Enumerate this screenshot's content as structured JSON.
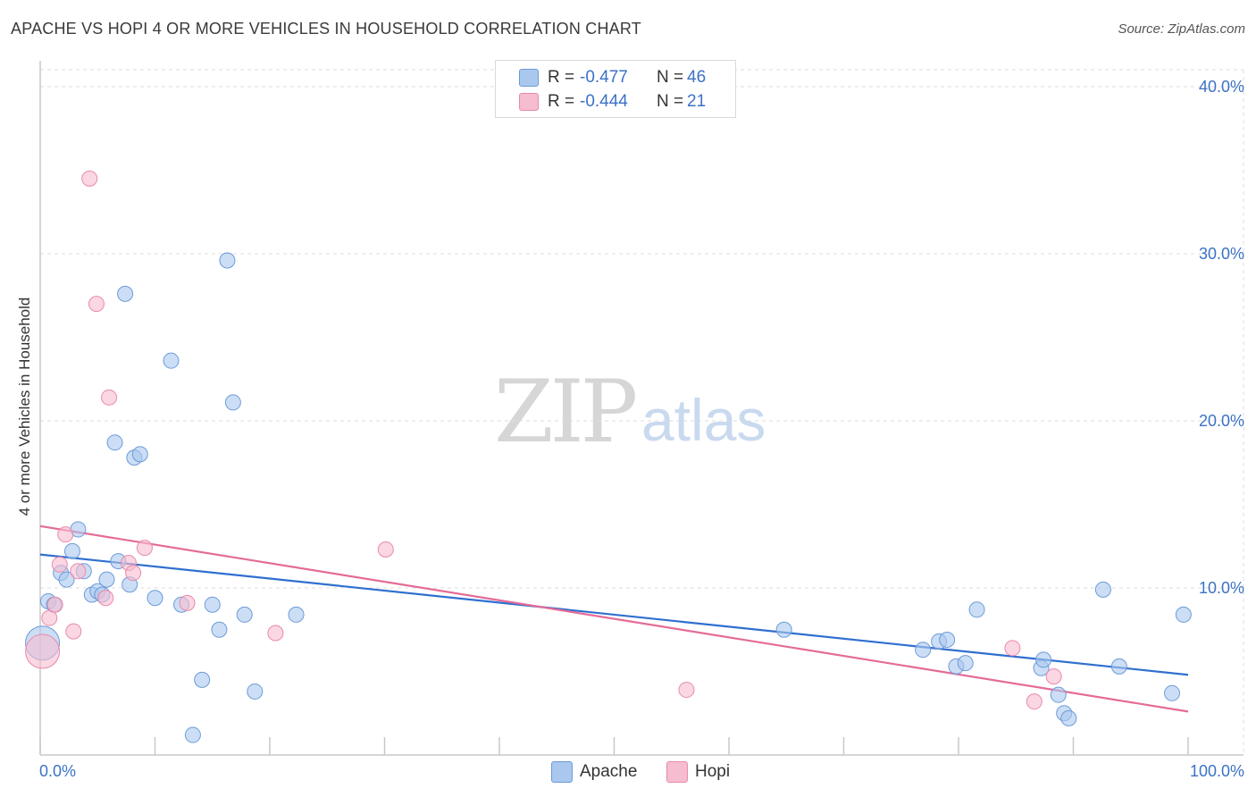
{
  "title": "APACHE VS HOPI 4 OR MORE VEHICLES IN HOUSEHOLD CORRELATION CHART",
  "source": "Source: ZipAtlas.com",
  "watermark": {
    "zip": "ZIP",
    "atlas": "atlas"
  },
  "legend": {
    "rows": [
      {
        "r_label": "R =",
        "r_value": "-0.477",
        "n_label": "N =",
        "n_value": "46",
        "color": "#aac8ee"
      },
      {
        "r_label": "R =",
        "r_value": "-0.444",
        "n_label": "N =",
        "n_value": "21",
        "color": "#f6bcd0"
      }
    ]
  },
  "colors": {
    "apache_fill": "#aac8ee",
    "apache_stroke": "#6c9bd8",
    "apache_line": "#2f6fd0",
    "hopi_fill": "#f6bcd0",
    "hopi_stroke": "#e98aac",
    "hopi_line": "#e46b97",
    "grid": "#dcdcdc",
    "axis_text": "#3b72c6"
  },
  "chart_data": {
    "type": "scatter",
    "title": "APACHE VS HOPI 4 OR MORE VEHICLES IN HOUSEHOLD CORRELATION CHART",
    "xlabel": "",
    "ylabel": "4 or more Vehicles in Household",
    "xlim": [
      0,
      100
    ],
    "ylim": [
      0,
      40
    ],
    "x_tick_labels": [
      "0.0%",
      "100.0%"
    ],
    "y_tick_labels": [
      "10.0%",
      "20.0%",
      "30.0%",
      "40.0%"
    ],
    "y_ticks": [
      10,
      20,
      30,
      40
    ],
    "grid": true,
    "legend_position": "bottom",
    "series": [
      {
        "name": "Apache",
        "trend": {
          "x": [
            0,
            100
          ],
          "y": [
            12.0,
            4.8
          ]
        },
        "points": [
          {
            "x": 0.2,
            "y": 6.7,
            "big": true
          },
          {
            "x": 0.7,
            "y": 9.2
          },
          {
            "x": 1.2,
            "y": 9.0
          },
          {
            "x": 1.8,
            "y": 10.9
          },
          {
            "x": 2.3,
            "y": 10.5
          },
          {
            "x": 2.8,
            "y": 12.2
          },
          {
            "x": 3.3,
            "y": 13.5
          },
          {
            "x": 3.8,
            "y": 11.0
          },
          {
            "x": 4.5,
            "y": 9.6
          },
          {
            "x": 5.0,
            "y": 9.8
          },
          {
            "x": 5.4,
            "y": 9.6
          },
          {
            "x": 5.8,
            "y": 10.5
          },
          {
            "x": 6.5,
            "y": 18.7
          },
          {
            "x": 6.8,
            "y": 11.6
          },
          {
            "x": 7.4,
            "y": 27.6
          },
          {
            "x": 7.8,
            "y": 10.2
          },
          {
            "x": 8.2,
            "y": 17.8
          },
          {
            "x": 8.7,
            "y": 18.0
          },
          {
            "x": 10.0,
            "y": 9.4
          },
          {
            "x": 11.4,
            "y": 23.6
          },
          {
            "x": 12.3,
            "y": 9.0
          },
          {
            "x": 13.3,
            "y": 1.2
          },
          {
            "x": 14.1,
            "y": 4.5
          },
          {
            "x": 15.0,
            "y": 9.0
          },
          {
            "x": 15.6,
            "y": 7.5
          },
          {
            "x": 16.3,
            "y": 29.6
          },
          {
            "x": 16.8,
            "y": 21.1
          },
          {
            "x": 17.8,
            "y": 8.4
          },
          {
            "x": 18.7,
            "y": 3.8
          },
          {
            "x": 22.3,
            "y": 8.4
          },
          {
            "x": 64.8,
            "y": 7.5
          },
          {
            "x": 76.9,
            "y": 6.3
          },
          {
            "x": 78.3,
            "y": 6.8
          },
          {
            "x": 79.0,
            "y": 6.9
          },
          {
            "x": 79.8,
            "y": 5.3
          },
          {
            "x": 80.6,
            "y": 5.5
          },
          {
            "x": 81.6,
            "y": 8.7
          },
          {
            "x": 87.2,
            "y": 5.2
          },
          {
            "x": 87.4,
            "y": 5.7
          },
          {
            "x": 88.7,
            "y": 3.6
          },
          {
            "x": 89.2,
            "y": 2.5
          },
          {
            "x": 89.6,
            "y": 2.2
          },
          {
            "x": 92.6,
            "y": 9.9
          },
          {
            "x": 94.0,
            "y": 5.3
          },
          {
            "x": 98.6,
            "y": 3.7
          },
          {
            "x": 99.6,
            "y": 8.4
          }
        ]
      },
      {
        "name": "Hopi",
        "trend": {
          "x": [
            0,
            100
          ],
          "y": [
            13.7,
            2.6
          ]
        },
        "points": [
          {
            "x": 0.2,
            "y": 6.2,
            "big": true
          },
          {
            "x": 0.8,
            "y": 8.2
          },
          {
            "x": 1.3,
            "y": 9.0
          },
          {
            "x": 1.7,
            "y": 11.4
          },
          {
            "x": 2.2,
            "y": 13.2
          },
          {
            "x": 2.9,
            "y": 7.4
          },
          {
            "x": 3.3,
            "y": 11.0
          },
          {
            "x": 4.3,
            "y": 34.5
          },
          {
            "x": 4.9,
            "y": 27.0
          },
          {
            "x": 5.7,
            "y": 9.4
          },
          {
            "x": 6.0,
            "y": 21.4
          },
          {
            "x": 7.7,
            "y": 11.5
          },
          {
            "x": 8.1,
            "y": 10.9
          },
          {
            "x": 9.1,
            "y": 12.4
          },
          {
            "x": 12.8,
            "y": 9.1
          },
          {
            "x": 20.5,
            "y": 7.3
          },
          {
            "x": 30.1,
            "y": 12.3
          },
          {
            "x": 56.3,
            "y": 3.9
          },
          {
            "x": 84.7,
            "y": 6.4
          },
          {
            "x": 86.6,
            "y": 3.2
          },
          {
            "x": 88.3,
            "y": 4.7
          }
        ]
      }
    ]
  }
}
